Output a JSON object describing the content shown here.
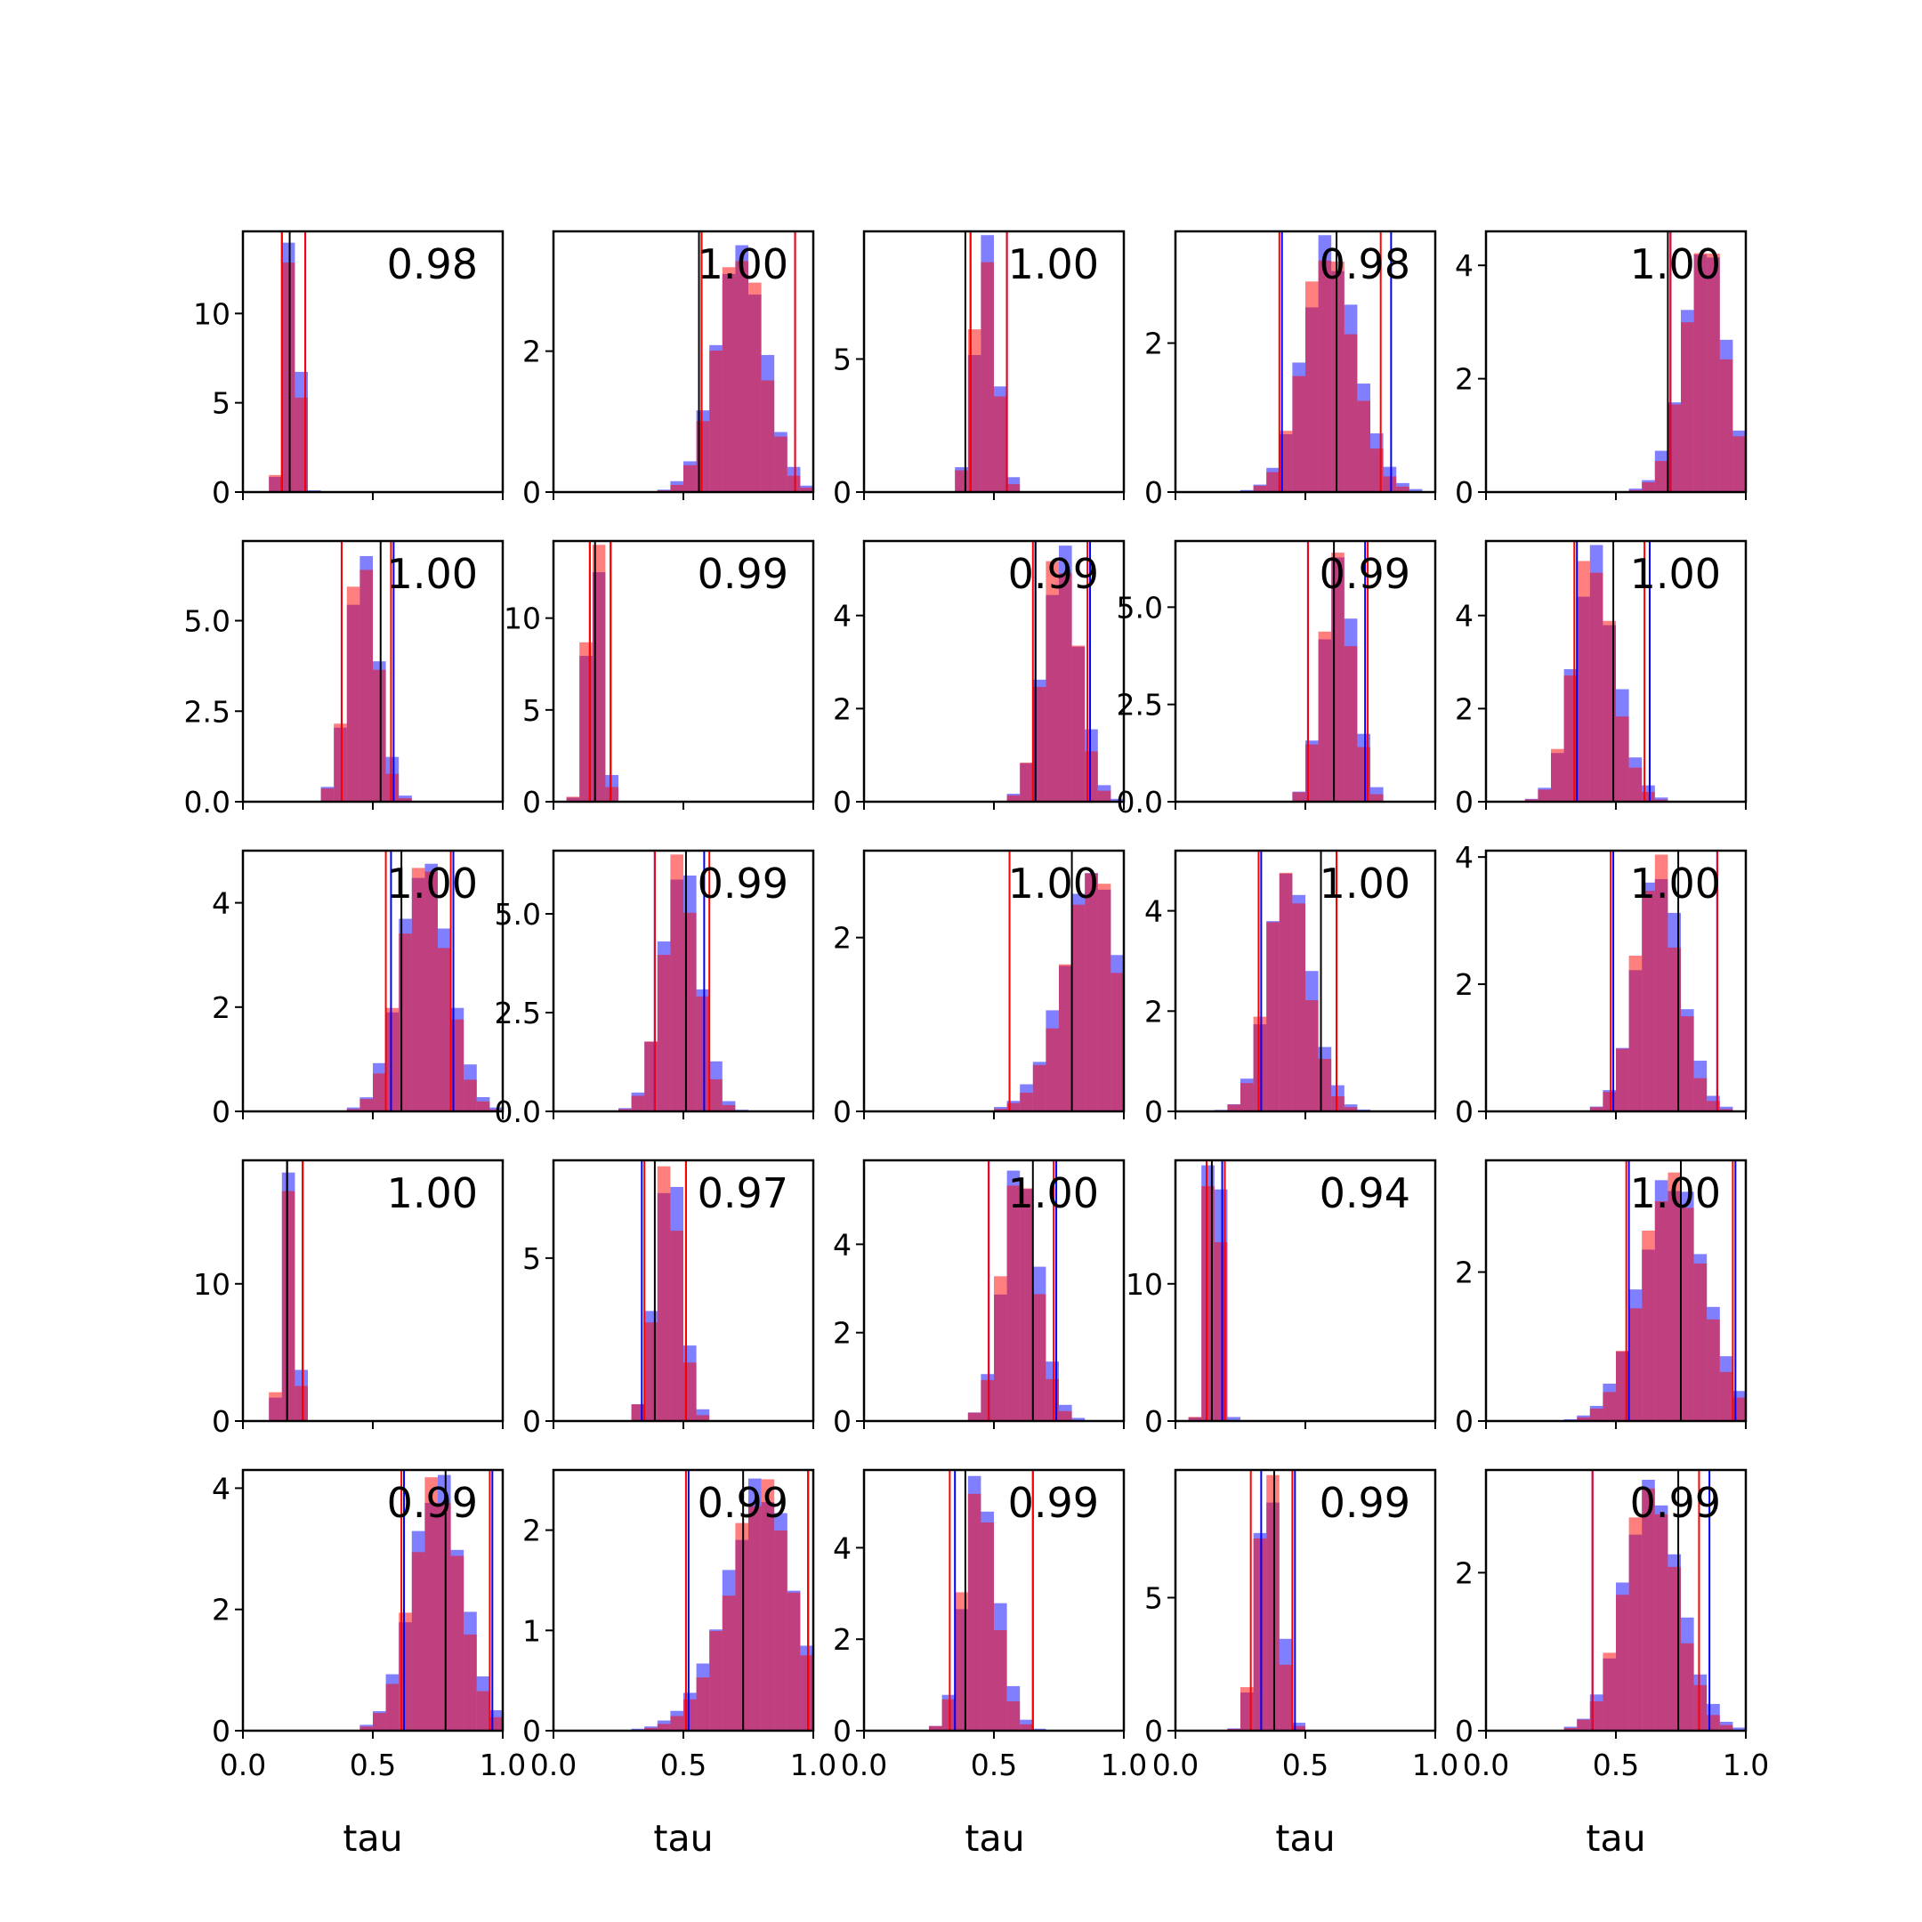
{
  "figure": {
    "xlabel": "tau"
  },
  "colors": {
    "blue": "#0000ff",
    "red": "#ff0000",
    "black": "#000000"
  },
  "chart_data": {
    "type": "histogram-grid",
    "rows": 5,
    "cols": 5,
    "xlim": [
      0,
      1
    ],
    "xticks": [
      0.0,
      0.5,
      1.0
    ],
    "xtick_labels": [
      "0.0",
      "0.5",
      "1.0"
    ],
    "bins": 20,
    "panels": [
      {
        "annotation": "0.98",
        "ylim": [
          0,
          14.6
        ],
        "yticks": [
          0,
          5,
          10
        ],
        "ytick_labels": [
          "0",
          "5",
          "10"
        ],
        "dist": [
          0.19,
          0.022,
          0
        ],
        "blue_lines": [
          0.15,
          0.24
        ],
        "red_lines": [
          0.15,
          0.24
        ],
        "black_line": 0.18
      },
      {
        "annotation": "1.00",
        "ylim": [
          0,
          3.7
        ],
        "yticks": [
          0,
          2
        ],
        "ytick_labels": [
          "0",
          "2"
        ],
        "dist": [
          0.76,
          0.1,
          -0.3
        ],
        "blue_lines": [
          0.57,
          0.93
        ],
        "red_lines": [
          0.57,
          0.93
        ],
        "black_line": 0.56
      },
      {
        "annotation": "1.00",
        "ylim": [
          0,
          9.8
        ],
        "yticks": [
          0,
          5
        ],
        "ytick_labels": [
          "0",
          "5"
        ],
        "dist": [
          0.47,
          0.04,
          0
        ],
        "blue_lines": [
          0.41,
          0.55
        ],
        "red_lines": [
          0.41,
          0.55
        ],
        "black_line": 0.39
      },
      {
        "annotation": "0.98",
        "ylim": [
          0,
          3.5
        ],
        "yticks": [
          0,
          2
        ],
        "ytick_labels": [
          "0",
          "2"
        ],
        "dist": [
          0.53,
          0.12,
          0.5
        ],
        "blue_lines": [
          0.41,
          0.83
        ],
        "red_lines": [
          0.4,
          0.79
        ],
        "black_line": 0.62
      },
      {
        "annotation": "1.00",
        "ylim": [
          0,
          4.6
        ],
        "yticks": [
          0,
          2,
          4
        ],
        "ytick_labels": [
          "0",
          "2",
          "4"
        ],
        "dist": [
          0.9,
          0.1,
          -0.6
        ],
        "blue_lines": [
          0.71,
          1.0
        ],
        "red_lines": [
          0.71,
          1.0
        ],
        "black_line": 0.7
      },
      {
        "annotation": "1.00",
        "ylim": [
          0,
          7.2
        ],
        "yticks": [
          0,
          2.5,
          5
        ],
        "ytick_labels": [
          "0.0",
          "2.5",
          "5.0"
        ],
        "dist": [
          0.44,
          0.06,
          0.3
        ],
        "blue_lines": [
          0.38,
          0.58
        ],
        "red_lines": [
          0.38,
          0.57
        ],
        "black_line": 0.53
      },
      {
        "annotation": "0.99",
        "ylim": [
          0,
          14.2
        ],
        "yticks": [
          0,
          5,
          10
        ],
        "ytick_labels": [
          "0",
          "5",
          "10"
        ],
        "dist": [
          0.16,
          0.025,
          0
        ],
        "blue_lines": [
          0.14,
          0.22
        ],
        "red_lines": [
          0.14,
          0.22
        ],
        "black_line": 0.16
      },
      {
        "annotation": "0.99",
        "ylim": [
          0,
          5.6
        ],
        "yticks": [
          0,
          2,
          4
        ],
        "ytick_labels": [
          "0",
          "2",
          "4"
        ],
        "dist": [
          0.74,
          0.07,
          0.2
        ],
        "blue_lines": [
          0.66,
          0.87
        ],
        "red_lines": [
          0.65,
          0.86
        ],
        "black_line": 0.66
      },
      {
        "annotation": "0.99",
        "ylim": [
          0,
          6.7
        ],
        "yticks": [
          0,
          2.5,
          5
        ],
        "ytick_labels": [
          "0.0",
          "2.5",
          "5.0"
        ],
        "dist": [
          0.61,
          0.06,
          0.2
        ],
        "blue_lines": [
          0.51,
          0.73
        ],
        "red_lines": [
          0.51,
          0.74
        ],
        "black_line": 0.61
      },
      {
        "annotation": "1.00",
        "ylim": [
          0,
          5.6
        ],
        "yticks": [
          0,
          2,
          4
        ],
        "ytick_labels": [
          "0",
          "2",
          "4"
        ],
        "dist": [
          0.36,
          0.1,
          0.6
        ],
        "blue_lines": [
          0.35,
          0.63
        ],
        "red_lines": [
          0.34,
          0.61
        ],
        "black_line": 0.49
      },
      {
        "annotation": "1.00",
        "ylim": [
          0,
          5.0
        ],
        "yticks": [
          0,
          2,
          4
        ],
        "ytick_labels": [
          "0",
          "2",
          "4"
        ],
        "dist": [
          0.7,
          0.09,
          0
        ],
        "blue_lines": [
          0.57,
          0.81
        ],
        "red_lines": [
          0.55,
          0.8
        ],
        "black_line": 0.61
      },
      {
        "annotation": "0.99",
        "ylim": [
          0,
          6.6
        ],
        "yticks": [
          0,
          2.5,
          5
        ],
        "ytick_labels": [
          "0.0",
          "2.5",
          "5.0"
        ],
        "dist": [
          0.48,
          0.07,
          0.1
        ],
        "blue_lines": [
          0.39,
          0.58
        ],
        "red_lines": [
          0.39,
          0.6
        ],
        "black_line": 0.51
      },
      {
        "annotation": "1.00",
        "ylim": [
          0,
          3.0
        ],
        "yticks": [
          0,
          2
        ],
        "ytick_labels": [
          "0",
          "2"
        ],
        "dist": [
          0.96,
          0.14,
          -0.8
        ],
        "blue_lines": [
          0.56,
          1.0
        ],
        "red_lines": [
          0.56,
          1.0
        ],
        "black_line": 0.8
      },
      {
        "annotation": "1.00",
        "ylim": [
          0,
          5.2
        ],
        "yticks": [
          0,
          2,
          4
        ],
        "ytick_labels": [
          "0",
          "2",
          "4"
        ],
        "dist": [
          0.38,
          0.1,
          0.6
        ],
        "blue_lines": [
          0.33,
          0.62
        ],
        "red_lines": [
          0.32,
          0.62
        ],
        "black_line": 0.56
      },
      {
        "annotation": "1.00",
        "ylim": [
          0,
          4.1
        ],
        "yticks": [
          0,
          2,
          4
        ],
        "ytick_labels": [
          "0",
          "2",
          "4"
        ],
        "dist": [
          0.61,
          0.1,
          0.5
        ],
        "blue_lines": [
          0.49,
          0.89
        ],
        "red_lines": [
          0.48,
          0.89
        ],
        "black_line": 0.74
      },
      {
        "annotation": "1.00",
        "ylim": [
          0,
          19.0
        ],
        "yticks": [
          0,
          10
        ],
        "ytick_labels": [
          "0",
          "10"
        ],
        "dist": [
          0.18,
          0.02,
          0
        ],
        "blue_lines": [
          0.17,
          0.23
        ],
        "red_lines": [
          0.17,
          0.23
        ],
        "black_line": 0.17
      },
      {
        "annotation": "0.97",
        "ylim": [
          0,
          8.0
        ],
        "yticks": [
          0,
          5
        ],
        "ytick_labels": [
          "0",
          "5"
        ],
        "dist": [
          0.43,
          0.05,
          0.2
        ],
        "blue_lines": [
          0.34,
          0.51
        ],
        "red_lines": [
          0.35,
          0.51
        ],
        "black_line": 0.39
      },
      {
        "annotation": "1.00",
        "ylim": [
          0,
          5.9
        ],
        "yticks": [
          0,
          2,
          4
        ],
        "ytick_labels": [
          "0",
          "2",
          "4"
        ],
        "dist": [
          0.56,
          0.08,
          0.5
        ],
        "blue_lines": [
          0.48,
          0.74
        ],
        "red_lines": [
          0.48,
          0.73
        ],
        "black_line": 0.65
      },
      {
        "annotation": "0.94",
        "ylim": [
          0,
          19.0
        ],
        "yticks": [
          0,
          10
        ],
        "ytick_labels": [
          "0",
          "10"
        ],
        "dist": [
          0.15,
          0.02,
          0
        ],
        "blue_lines": [
          0.12,
          0.18
        ],
        "red_lines": [
          0.12,
          0.19
        ],
        "black_line": 0.14
      },
      {
        "annotation": "1.00",
        "ylim": [
          0,
          3.5
        ],
        "yticks": [
          0,
          2
        ],
        "ytick_labels": [
          "0",
          "2"
        ],
        "dist": [
          0.72,
          0.12,
          0
        ],
        "blue_lines": [
          0.55,
          0.96
        ],
        "red_lines": [
          0.54,
          0.95
        ],
        "black_line": 0.75
      },
      {
        "annotation": "0.99",
        "ylim": [
          0,
          4.3
        ],
        "yticks": [
          0,
          2,
          4
        ],
        "ytick_labels": [
          "0",
          "2",
          "4"
        ],
        "dist": [
          0.72,
          0.1,
          0.2
        ],
        "blue_lines": [
          0.62,
          0.96
        ],
        "red_lines": [
          0.61,
          0.95
        ],
        "black_line": 0.78
      },
      {
        "annotation": "0.99",
        "ylim": [
          0,
          2.6
        ],
        "yticks": [
          0,
          1,
          2
        ],
        "ytick_labels": [
          "0",
          "1",
          "2"
        ],
        "dist": [
          0.9,
          0.17,
          -0.8
        ],
        "blue_lines": [
          0.52,
          0.98
        ],
        "red_lines": [
          0.51,
          0.98
        ],
        "black_line": 0.73
      },
      {
        "annotation": "0.99",
        "ylim": [
          0,
          5.7
        ],
        "yticks": [
          0,
          2,
          4
        ],
        "ytick_labels": [
          "0",
          "2",
          "4"
        ],
        "dist": [
          0.4,
          0.08,
          0.7
        ],
        "blue_lines": [
          0.35,
          0.65
        ],
        "red_lines": [
          0.33,
          0.65
        ],
        "black_line": 0.39
      },
      {
        "annotation": "0.99",
        "ylim": [
          0,
          9.8
        ],
        "yticks": [
          0,
          5
        ],
        "ytick_labels": [
          "0",
          "5"
        ],
        "dist": [
          0.36,
          0.04,
          0
        ],
        "blue_lines": [
          0.33,
          0.46
        ],
        "red_lines": [
          0.29,
          0.45
        ],
        "black_line": 0.38
      },
      {
        "annotation": "0.99",
        "ylim": [
          0,
          3.3
        ],
        "yticks": [
          0,
          2
        ],
        "ytick_labels": [
          "0",
          "2"
        ],
        "dist": [
          0.58,
          0.12,
          0.4
        ],
        "blue_lines": [
          0.41,
          0.86
        ],
        "red_lines": [
          0.41,
          0.82
        ],
        "black_line": 0.74
      }
    ]
  }
}
